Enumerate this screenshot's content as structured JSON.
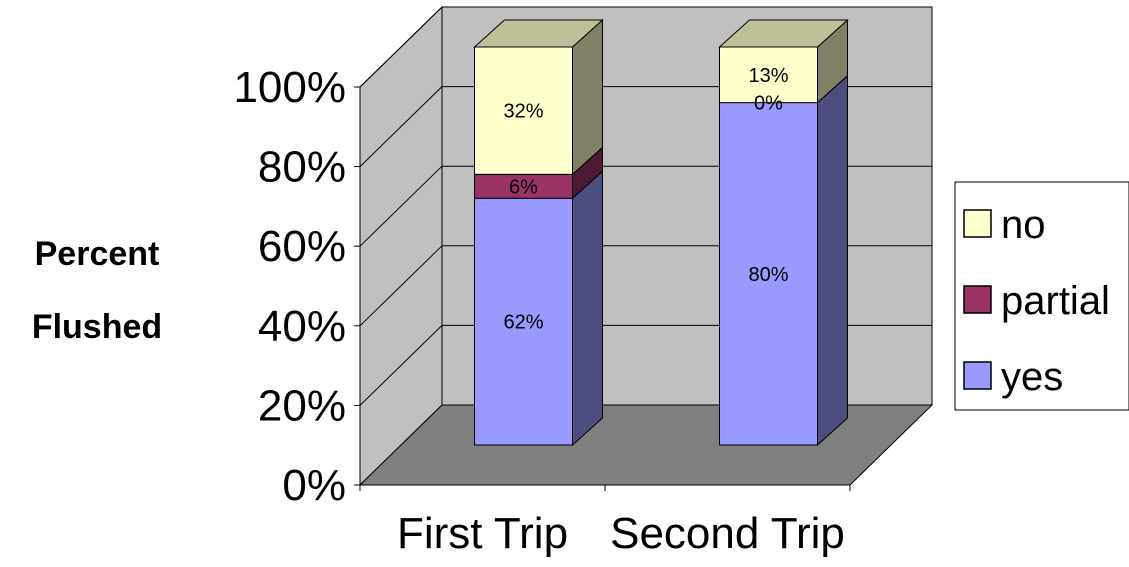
{
  "chart_data": {
    "type": "bar",
    "stacked": true,
    "percent_stacked": true,
    "three_d": true,
    "categories": [
      "First Trip",
      "Second Trip"
    ],
    "series": [
      {
        "name": "yes",
        "values": [
          62,
          80
        ],
        "labels": [
          "62%",
          "80%"
        ],
        "color": "#9999ff"
      },
      {
        "name": "partial",
        "values": [
          6,
          0
        ],
        "labels": [
          "6%",
          "0%"
        ],
        "color": "#993366"
      },
      {
        "name": "no",
        "values": [
          32,
          13
        ],
        "labels": [
          "32%",
          "13%"
        ],
        "color": "#ffffcc"
      }
    ],
    "ylabel": [
      "Percent",
      "Flushed"
    ],
    "ylim": [
      0,
      100
    ],
    "yticks": [
      "0%",
      "20%",
      "40%",
      "60%",
      "80%",
      "100%"
    ],
    "legend_order": [
      "no",
      "partial",
      "yes"
    ],
    "legend_position": "right",
    "grid": true,
    "colors": {
      "wall": "#c0c0c0",
      "floor": "#808080",
      "gridline": "#000000"
    }
  }
}
